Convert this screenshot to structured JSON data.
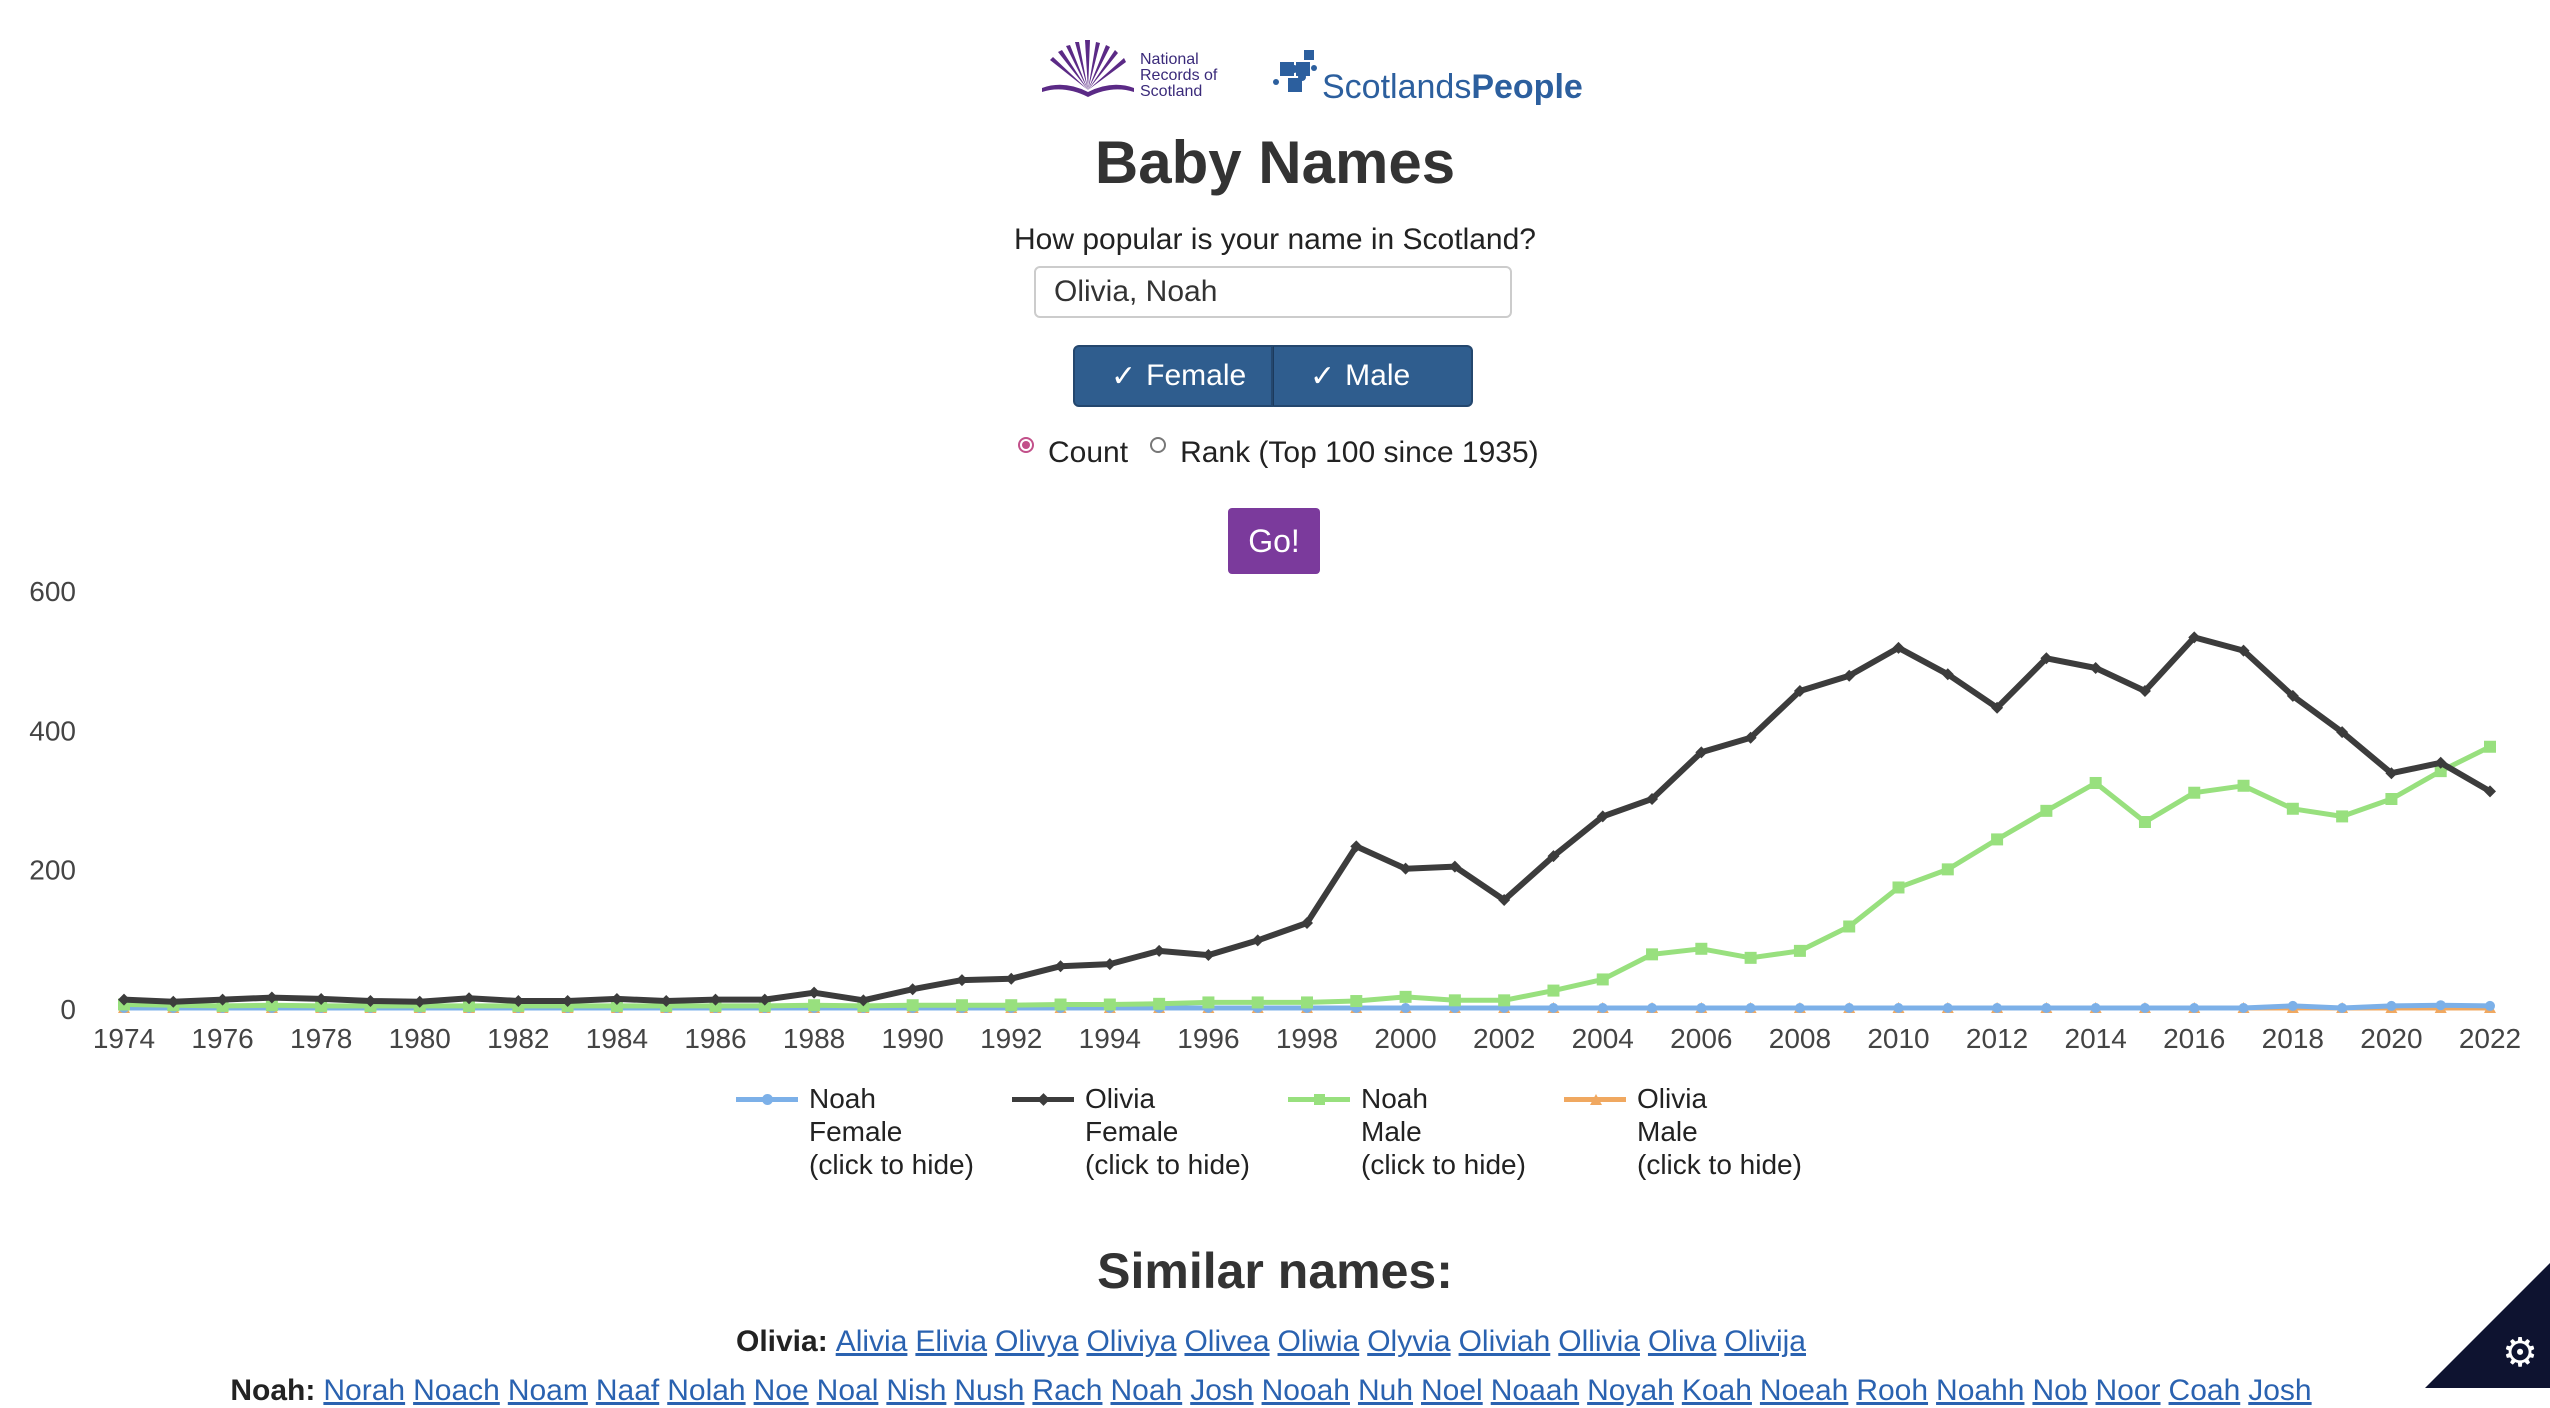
{
  "header": {
    "nrs_logo_text": [
      "National",
      "Records of",
      "Scotland"
    ],
    "sp_logo_text": "Scotlands",
    "sp_logo_bold": "People",
    "title": "Baby Names",
    "prompt": "How popular is your name in Scotland?"
  },
  "search": {
    "value": "Olivia, Noah"
  },
  "sex_buttons": {
    "female": "Female",
    "male": "Male",
    "check_icon": "check-icon"
  },
  "mode": {
    "count": "Count",
    "rank": "Rank (Top 100 since 1935)",
    "selected": "count"
  },
  "go_label": "Go!",
  "colors": {
    "noah_female": "#7cb0e8",
    "olivia_female": "#3c3c3c",
    "noah_male": "#98e07e",
    "olivia_male": "#f0a860",
    "go": "#7b3a9c",
    "sex_btn": "#2f5d8e"
  },
  "chart_data": {
    "type": "line",
    "x": [
      1974,
      1975,
      1976,
      1977,
      1978,
      1979,
      1980,
      1981,
      1982,
      1983,
      1984,
      1985,
      1986,
      1987,
      1988,
      1989,
      1990,
      1991,
      1992,
      1993,
      1994,
      1995,
      1996,
      1997,
      1998,
      1999,
      2000,
      2001,
      2002,
      2003,
      2004,
      2005,
      2006,
      2007,
      2008,
      2009,
      2010,
      2011,
      2012,
      2013,
      2014,
      2015,
      2016,
      2017,
      2018,
      2019,
      2020,
      2021,
      2022
    ],
    "xticks": [
      "1974",
      "1976",
      "1978",
      "1980",
      "1982",
      "1984",
      "1986",
      "1988",
      "1990",
      "1992",
      "1994",
      "1996",
      "1998",
      "2000",
      "2002",
      "2004",
      "2006",
      "2008",
      "2010",
      "2012",
      "2014",
      "2016",
      "2018",
      "2020",
      "2022"
    ],
    "yticks": [
      "0",
      "200",
      "400",
      "600"
    ],
    "ylim": [
      0,
      600
    ],
    "grid": false,
    "legend_position": "bottom",
    "series": [
      {
        "name": "Noah Female (click to hide)",
        "label_lines": [
          "Noah",
          "Female",
          "(click to hide)"
        ],
        "marker": "circle",
        "values": [
          0,
          0,
          0,
          0,
          0,
          0,
          0,
          0,
          0,
          0,
          0,
          0,
          0,
          0,
          0,
          0,
          0,
          0,
          0,
          0,
          0,
          0,
          0,
          0,
          0,
          0,
          0,
          0,
          0,
          0,
          0,
          0,
          0,
          0,
          0,
          0,
          0,
          0,
          0,
          0,
          0,
          0,
          0,
          0,
          3,
          0,
          3,
          4,
          3
        ]
      },
      {
        "name": "Olivia Female (click to hide)",
        "label_lines": [
          "Olivia",
          "Female",
          "(click to hide)"
        ],
        "marker": "diamond",
        "values": [
          12,
          9,
          12,
          15,
          13,
          10,
          9,
          14,
          10,
          10,
          13,
          10,
          12,
          12,
          22,
          11,
          27,
          40,
          42,
          60,
          63,
          82,
          76,
          97,
          122,
          232,
          200,
          203,
          155,
          218,
          275,
          300,
          367,
          388,
          455,
          477,
          517,
          479,
          431,
          502,
          488,
          455,
          532,
          513,
          448,
          396,
          337,
          352,
          311
        ]
      },
      {
        "name": "Noah Male (click to hide)",
        "label_lines": [
          "Noah",
          "Male",
          "(click to hide)"
        ],
        "marker": "square",
        "values": [
          5,
          4,
          3,
          4,
          3,
          3,
          3,
          3,
          3,
          3,
          3,
          3,
          3,
          3,
          4,
          3,
          4,
          4,
          4,
          5,
          5,
          6,
          8,
          8,
          8,
          10,
          16,
          11,
          11,
          25,
          41,
          77,
          85,
          72,
          82,
          117,
          173,
          199,
          242,
          283,
          323,
          267,
          309,
          319,
          286,
          275,
          300,
          340,
          375
        ]
      },
      {
        "name": "Olivia Male (click to hide)",
        "label_lines": [
          "Olivia",
          "Male",
          "(click to hide)"
        ],
        "marker": "triangle",
        "values": [
          0,
          0,
          0,
          0,
          0,
          0,
          0,
          0,
          0,
          0,
          0,
          0,
          0,
          0,
          0,
          0,
          0,
          0,
          0,
          0,
          0,
          0,
          0,
          0,
          0,
          0,
          0,
          0,
          0,
          0,
          0,
          0,
          0,
          0,
          0,
          0,
          0,
          0,
          0,
          0,
          0,
          0,
          0,
          0,
          0,
          0,
          0,
          0,
          0
        ]
      }
    ]
  },
  "similar": {
    "title": "Similar names:",
    "olivia_label": "Olivia:",
    "olivia_names": [
      "Alivia",
      "Elivia",
      "Olivya",
      "Oliviya",
      "Olivea",
      "Oliwia",
      "Olyvia",
      "Oliviah",
      "Ollivia",
      "Oliva",
      "Olivija"
    ],
    "noah_label": "Noah:",
    "noah_names": [
      "Norah",
      "Noach",
      "Noam",
      "Naaf",
      "Nolah",
      "Noe",
      "Noal",
      "Nish",
      "Nush",
      "Rach",
      "Noah",
      "Josh",
      "Nooah",
      "Nuh",
      "Noel",
      "Noaah",
      "Noyah",
      "Koah",
      "Noeah",
      "Rooh",
      "Noahh",
      "Nob",
      "Noor",
      "Coah",
      "Josh"
    ]
  },
  "cookie_icon": "gear-icon"
}
